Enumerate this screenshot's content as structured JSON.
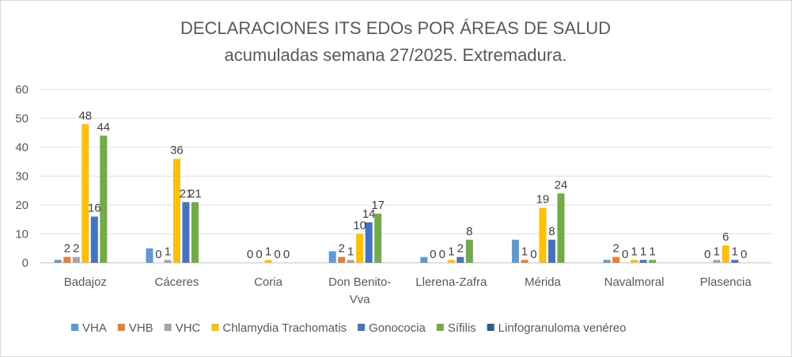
{
  "chart_data": {
    "type": "bar",
    "title": "DECLARACIONES ITS EDOs POR ÁREAS DE SALUD",
    "subtitle": "acumuladas semana 27/2025. Extremadura.",
    "categories": [
      [
        "Badajoz"
      ],
      [
        "Cáceres"
      ],
      [
        "Coria"
      ],
      [
        "Don Benito-",
        "Vva"
      ],
      [
        "Llerena-Zafra"
      ],
      [
        "Mérida"
      ],
      [
        "Navalmoral"
      ],
      [
        "Plasencia"
      ]
    ],
    "ylim": [
      0,
      60
    ],
    "yticks": [
      "0",
      "10",
      "20",
      "30",
      "40",
      "50",
      "60"
    ],
    "grid": true,
    "legend_position": "bottom",
    "series": [
      {
        "name": "VHA",
        "color": "#5b9bd5",
        "values": [
          1,
          5,
          0,
          4,
          2,
          8,
          1,
          0
        ],
        "labels": [
          null,
          null,
          null,
          null,
          null,
          null,
          null,
          null
        ]
      },
      {
        "name": "VHB",
        "color": "#ed7d31",
        "values": [
          2,
          0,
          0,
          2,
          0,
          1,
          2,
          0
        ],
        "labels": [
          "2",
          "0",
          "0",
          "2",
          "0",
          "1",
          "2",
          "0"
        ]
      },
      {
        "name": "VHC",
        "color": "#a5a5a5",
        "values": [
          2,
          1,
          0,
          1,
          0,
          0,
          0,
          1
        ],
        "labels": [
          "2",
          "1",
          "0",
          "1",
          "0",
          "0",
          "0",
          "1"
        ]
      },
      {
        "name": "Chlamydia Trachomatis",
        "color": "#ffc000",
        "values": [
          48,
          36,
          1,
          10,
          1,
          19,
          1,
          6
        ],
        "labels": [
          "48",
          "36",
          "1",
          "10",
          "1",
          "19",
          "1",
          "6"
        ]
      },
      {
        "name": "Gonococia",
        "color": "#4472c4",
        "values": [
          16,
          21,
          0,
          14,
          2,
          8,
          1,
          1
        ],
        "labels": [
          "16",
          "21",
          "0",
          "14",
          "2",
          "8",
          "1",
          "1"
        ]
      },
      {
        "name": "Sífilis",
        "color": "#70ad47",
        "values": [
          44,
          21,
          0,
          17,
          8,
          24,
          1,
          0
        ],
        "labels": [
          "44",
          "21",
          "0",
          "17",
          "8",
          "24",
          "1",
          "0"
        ]
      },
      {
        "name": "Linfogranuloma venéreo",
        "color": "#255e91",
        "values": [
          0,
          0,
          0,
          0,
          0,
          0,
          0,
          0
        ],
        "labels": [
          null,
          null,
          null,
          null,
          null,
          null,
          null,
          null
        ]
      }
    ]
  }
}
